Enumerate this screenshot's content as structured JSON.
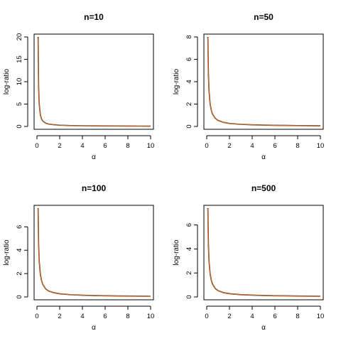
{
  "colors": {
    "series_a": "#222222",
    "series_b": "#d2691e"
  },
  "chart_data": [
    {
      "type": "line",
      "title": "n=10",
      "xlabel": "α",
      "ylabel": "log-ratio",
      "xlim": [
        0,
        10
      ],
      "ylim": [
        0,
        20
      ],
      "xticks": [
        0,
        2,
        4,
        6,
        8,
        10
      ],
      "yticks": [
        0,
        5,
        10,
        15,
        20
      ],
      "x": [
        0.1,
        0.15,
        0.2,
        0.3,
        0.4,
        0.5,
        0.75,
        1,
        1.5,
        2,
        3,
        4,
        5,
        6,
        7,
        8,
        9,
        10
      ],
      "series": [
        {
          "values": [
            20.0,
            8.5,
            5.0,
            2.6,
            1.7,
            1.25,
            0.75,
            0.55,
            0.38,
            0.28,
            0.2,
            0.16,
            0.13,
            0.11,
            0.1,
            0.09,
            0.08,
            0.07
          ]
        },
        {
          "values": [
            19.8,
            8.4,
            4.95,
            2.58,
            1.68,
            1.24,
            0.74,
            0.54,
            0.37,
            0.28,
            0.2,
            0.16,
            0.13,
            0.11,
            0.1,
            0.09,
            0.08,
            0.07
          ]
        }
      ],
      "grid": false
    },
    {
      "type": "line",
      "title": "n=50",
      "xlabel": "α",
      "ylabel": "log-ratio",
      "xlim": [
        0,
        10
      ],
      "ylim": [
        0,
        8
      ],
      "xticks": [
        0,
        2,
        4,
        6,
        8,
        10
      ],
      "yticks": [
        0,
        2,
        4,
        6,
        8
      ],
      "x": [
        0.1,
        0.15,
        0.2,
        0.3,
        0.4,
        0.5,
        0.75,
        1,
        1.5,
        2,
        3,
        4,
        5,
        6,
        7,
        8,
        9,
        10
      ],
      "series": [
        {
          "values": [
            8.0,
            4.6,
            3.2,
            2.0,
            1.45,
            1.12,
            0.72,
            0.53,
            0.36,
            0.27,
            0.19,
            0.15,
            0.12,
            0.1,
            0.09,
            0.08,
            0.07,
            0.06
          ]
        },
        {
          "values": [
            7.95,
            4.57,
            3.18,
            1.99,
            1.44,
            1.11,
            0.71,
            0.52,
            0.36,
            0.27,
            0.19,
            0.15,
            0.12,
            0.1,
            0.09,
            0.08,
            0.07,
            0.06
          ]
        }
      ],
      "grid": false
    },
    {
      "type": "line",
      "title": "n=100",
      "xlabel": "α",
      "ylabel": "log-ratio",
      "xlim": [
        0,
        10
      ],
      "ylim": [
        0,
        7.6
      ],
      "xticks": [
        0,
        2,
        4,
        6,
        8,
        10
      ],
      "yticks": [
        0,
        2,
        4,
        6
      ],
      "x": [
        0.1,
        0.15,
        0.2,
        0.3,
        0.4,
        0.5,
        0.75,
        1,
        1.5,
        2,
        3,
        4,
        5,
        6,
        7,
        8,
        9,
        10
      ],
      "series": [
        {
          "values": [
            7.6,
            4.4,
            3.05,
            1.95,
            1.42,
            1.1,
            0.71,
            0.52,
            0.36,
            0.27,
            0.19,
            0.15,
            0.12,
            0.1,
            0.09,
            0.08,
            0.07,
            0.06
          ]
        },
        {
          "values": [
            7.55,
            4.37,
            3.03,
            1.94,
            1.41,
            1.09,
            0.7,
            0.52,
            0.35,
            0.27,
            0.19,
            0.15,
            0.12,
            0.1,
            0.09,
            0.08,
            0.07,
            0.06
          ]
        }
      ],
      "grid": false
    },
    {
      "type": "line",
      "title": "n=500",
      "xlabel": "α",
      "ylabel": "log-ratio",
      "xlim": [
        0,
        10
      ],
      "ylim": [
        0,
        7.4
      ],
      "xticks": [
        0,
        2,
        4,
        6,
        8,
        10
      ],
      "yticks": [
        0,
        2,
        4,
        6
      ],
      "x": [
        0.1,
        0.15,
        0.2,
        0.3,
        0.4,
        0.5,
        0.75,
        1,
        1.5,
        2,
        3,
        4,
        5,
        6,
        7,
        8,
        9,
        10
      ],
      "series": [
        {
          "values": [
            7.4,
            4.3,
            3.0,
            1.92,
            1.4,
            1.09,
            0.7,
            0.52,
            0.35,
            0.27,
            0.19,
            0.15,
            0.12,
            0.1,
            0.09,
            0.08,
            0.07,
            0.06
          ]
        },
        {
          "values": [
            7.35,
            4.27,
            2.98,
            1.91,
            1.39,
            1.08,
            0.69,
            0.51,
            0.35,
            0.26,
            0.19,
            0.15,
            0.12,
            0.1,
            0.09,
            0.08,
            0.07,
            0.06
          ]
        }
      ],
      "grid": false
    }
  ]
}
